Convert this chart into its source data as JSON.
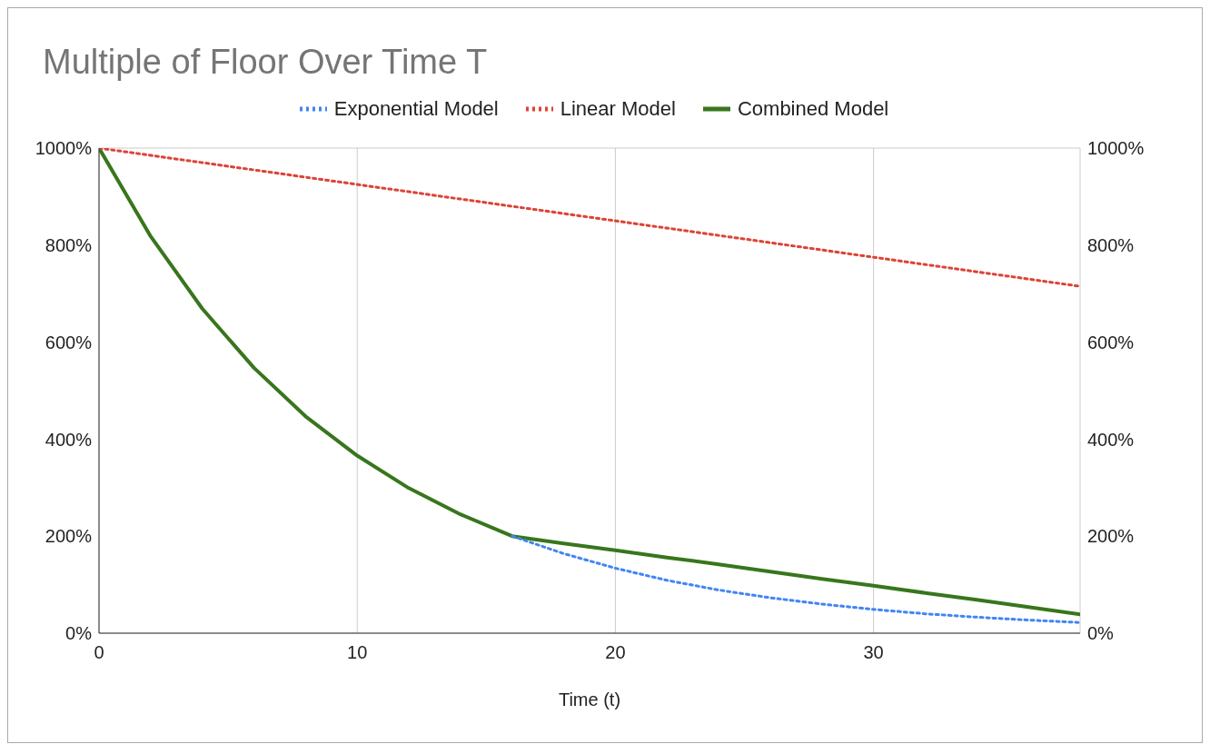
{
  "chart_data": {
    "type": "line",
    "title": "Multiple of Floor Over Time T",
    "xlabel": "Time (t)",
    "x": [
      0,
      2,
      4,
      6,
      8,
      10,
      12,
      14,
      16,
      18,
      20,
      22,
      24,
      26,
      28,
      30,
      32,
      34,
      36,
      38
    ],
    "series": [
      {
        "name": "Exponential Model",
        "color": "#4285f4",
        "line_style": "dotted",
        "values": [
          null,
          null,
          null,
          null,
          null,
          null,
          null,
          null,
          200,
          164,
          134,
          109,
          89,
          73,
          60,
          49,
          40,
          33,
          27,
          22
        ]
      },
      {
        "name": "Linear Model",
        "color": "#db4437",
        "line_style": "dotted",
        "values": [
          1000,
          985,
          970,
          955,
          940,
          925,
          910,
          895,
          880,
          865,
          850,
          835,
          820,
          805,
          790,
          775,
          760,
          745,
          730,
          715
        ]
      },
      {
        "name": "Combined Model",
        "color": "#38761d",
        "line_style": "solid",
        "values": [
          1000,
          818,
          669,
          547,
          447,
          366,
          299,
          245,
          200,
          185,
          171,
          156,
          142,
          127,
          112,
          98,
          83,
          69,
          54,
          39
        ]
      }
    ],
    "xlim": [
      0,
      38
    ],
    "xticks": [
      0,
      10,
      20,
      30
    ],
    "ylim": [
      0,
      1000
    ],
    "yticks": [
      {
        "value": 0,
        "label": "0%"
      },
      {
        "value": 200,
        "label": "200%"
      },
      {
        "value": 400,
        "label": "400%"
      },
      {
        "value": 600,
        "label": "600%"
      },
      {
        "value": 800,
        "label": "800%"
      },
      {
        "value": 1000,
        "label": "1000%"
      }
    ],
    "y2lim": [
      0,
      1000
    ],
    "y2ticks": [
      {
        "value": 0,
        "label": "0%"
      },
      {
        "value": 200,
        "label": "200%"
      },
      {
        "value": 400,
        "label": "400%"
      },
      {
        "value": 600,
        "label": "600%"
      },
      {
        "value": 800,
        "label": "800%"
      },
      {
        "value": 1000,
        "label": "1000%"
      }
    ],
    "grid": true,
    "legend": "top",
    "marker": "none"
  }
}
